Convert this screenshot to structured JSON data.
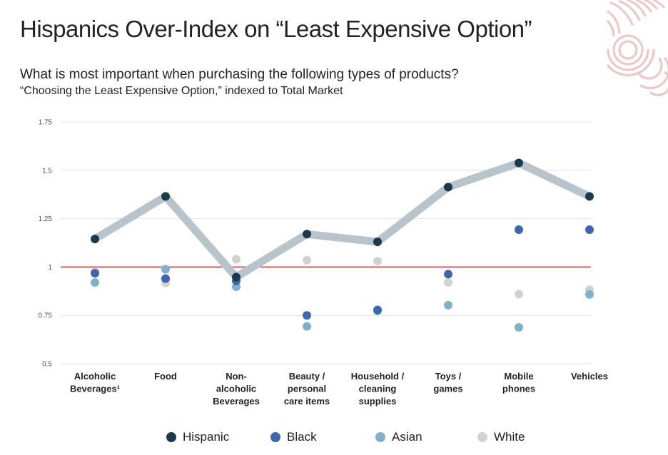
{
  "header": {
    "title": "Hispanics Over-Index on “Least Expensive Option”",
    "subtitle": "What is most important when purchasing the following types of products?",
    "subnote": "“Choosing the Least Expensive Option,” indexed to Total Market"
  },
  "logo": {
    "icon": "fingerprint-swirl-logo",
    "color": "#e9c9cc"
  },
  "chart_data": {
    "type": "line",
    "categories": [
      [
        "Alcoholic",
        "Beverages¹"
      ],
      [
        "Food"
      ],
      [
        "Non-",
        "alcoholic",
        "Beverages"
      ],
      [
        "Beauty /",
        "personal",
        "care items"
      ],
      [
        "Household /",
        "cleaning",
        "supplies"
      ],
      [
        "Toys /",
        "games"
      ],
      [
        "Mobile",
        "phones"
      ],
      [
        "Vehicles"
      ]
    ],
    "yticks": [
      "0.5",
      "0.75",
      "1",
      "1.25",
      "1.5",
      "1.75"
    ],
    "ylim": [
      0.5,
      1.75
    ],
    "reference_line": {
      "value": 1,
      "color": "#d9363e"
    },
    "grid": true,
    "legend_position": "bottom",
    "series": [
      {
        "name": "Hispanic",
        "color": "#1b3a4b",
        "line": true,
        "line_color": "#b8c4cc",
        "values": [
          1.145,
          1.365,
          0.948,
          1.17,
          1.13,
          1.413,
          1.538,
          1.365
        ]
      },
      {
        "name": "Black",
        "color": "#3d66b0",
        "line": false,
        "values": [
          0.968,
          0.94,
          0.928,
          0.75,
          0.778,
          0.963,
          1.193,
          1.193
        ]
      },
      {
        "name": "Asian",
        "color": "#7fb0cc",
        "line": false,
        "values": [
          0.92,
          0.988,
          0.898,
          0.693,
          0.773,
          0.803,
          0.688,
          0.858
        ]
      },
      {
        "name": "White",
        "color": "#d2d2d2",
        "line": false,
        "values": [
          0.975,
          0.918,
          1.04,
          1.035,
          1.03,
          0.92,
          0.86,
          0.883
        ]
      }
    ]
  }
}
